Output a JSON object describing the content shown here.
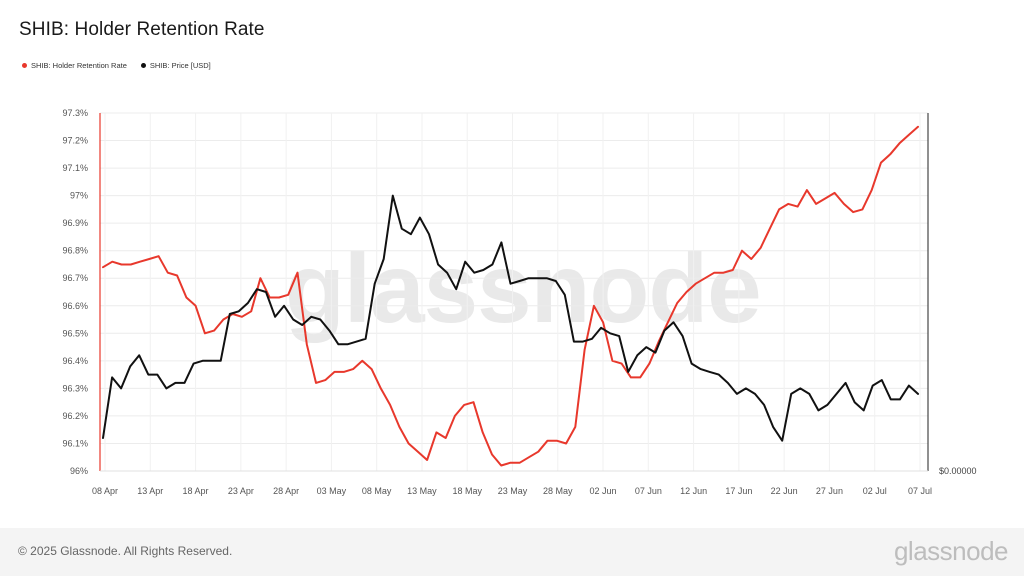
{
  "title": "SHIB: Holder Retention Rate",
  "legend": [
    {
      "label": "SHIB: Holder Retention Rate",
      "color": "#e8382c"
    },
    {
      "label": "SHIB: Price [USD]",
      "color": "#111111"
    }
  ],
  "watermark": "glassnode",
  "footer": {
    "copyright": "© 2025 Glassnode. All Rights Reserved.",
    "brand": "glassnode"
  },
  "chart_data": {
    "type": "line",
    "x_tick_labels": [
      "08 Apr",
      "13 Apr",
      "18 Apr",
      "23 Apr",
      "28 Apr",
      "03 May",
      "08 May",
      "13 May",
      "18 May",
      "23 May",
      "28 May",
      "02 Jun",
      "07 Jun",
      "12 Jun",
      "17 Jun",
      "22 Jun",
      "27 Jun",
      "02 Jul",
      "07 Jul"
    ],
    "y_tick_labels": [
      "96%",
      "96.1%",
      "96.2%",
      "96.3%",
      "96.4%",
      "96.5%",
      "96.6%",
      "96.7%",
      "96.8%",
      "96.9%",
      "97%",
      "97.1%",
      "97.2%",
      "97.3%"
    ],
    "ylim": [
      96.0,
      97.3
    ],
    "right_axis_label": "$0.00000",
    "series": [
      {
        "name": "SHIB: Holder Retention Rate",
        "color": "#e8382c",
        "axis": "left",
        "values": [
          96.74,
          96.76,
          96.75,
          96.75,
          96.76,
          96.77,
          96.78,
          96.72,
          96.71,
          96.63,
          96.6,
          96.5,
          96.51,
          96.55,
          96.57,
          96.56,
          96.58,
          96.7,
          96.63,
          96.63,
          96.64,
          96.72,
          96.46,
          96.32,
          96.33,
          96.36,
          96.36,
          96.37,
          96.4,
          96.37,
          96.3,
          96.24,
          96.16,
          96.1,
          96.07,
          96.04,
          96.14,
          96.12,
          96.2,
          96.24,
          96.25,
          96.14,
          96.06,
          96.02,
          96.03,
          96.03,
          96.05,
          96.07,
          96.11,
          96.11,
          96.1,
          96.16,
          96.44,
          96.6,
          96.54,
          96.4,
          96.39,
          96.34,
          96.34,
          96.39,
          96.47,
          96.54,
          96.61,
          96.65,
          96.68,
          96.7,
          96.72,
          96.72,
          96.73,
          96.8,
          96.77,
          96.81,
          96.88,
          96.95,
          96.97,
          96.96,
          97.02,
          96.97,
          96.99,
          97.01,
          96.97,
          96.94,
          96.95,
          97.02,
          97.12,
          97.15,
          97.19,
          97.22,
          97.25
        ]
      },
      {
        "name": "SHIB: Price [USD]",
        "color": "#111111",
        "axis": "right",
        "values": [
          96.12,
          96.34,
          96.3,
          96.38,
          96.42,
          96.35,
          96.35,
          96.3,
          96.32,
          96.32,
          96.39,
          96.4,
          96.4,
          96.4,
          96.57,
          96.58,
          96.61,
          96.66,
          96.65,
          96.56,
          96.6,
          96.55,
          96.53,
          96.56,
          96.55,
          96.51,
          96.46,
          96.46,
          96.47,
          96.48,
          96.68,
          96.77,
          97.0,
          96.88,
          96.86,
          96.92,
          96.86,
          96.75,
          96.72,
          96.66,
          96.76,
          96.72,
          96.73,
          96.75,
          96.83,
          96.68,
          96.69,
          96.7,
          96.7,
          96.7,
          96.69,
          96.64,
          96.47,
          96.47,
          96.48,
          96.52,
          96.5,
          96.49,
          96.36,
          96.42,
          96.45,
          96.43,
          96.51,
          96.54,
          96.49,
          96.39,
          96.37,
          96.36,
          96.35,
          96.32,
          96.28,
          96.3,
          96.28,
          96.24,
          96.16,
          96.11,
          96.28,
          96.3,
          96.28,
          96.22,
          96.24,
          96.28,
          96.32,
          96.25,
          96.22,
          96.31,
          96.33,
          96.26,
          96.26,
          96.31,
          96.28
        ]
      }
    ]
  }
}
